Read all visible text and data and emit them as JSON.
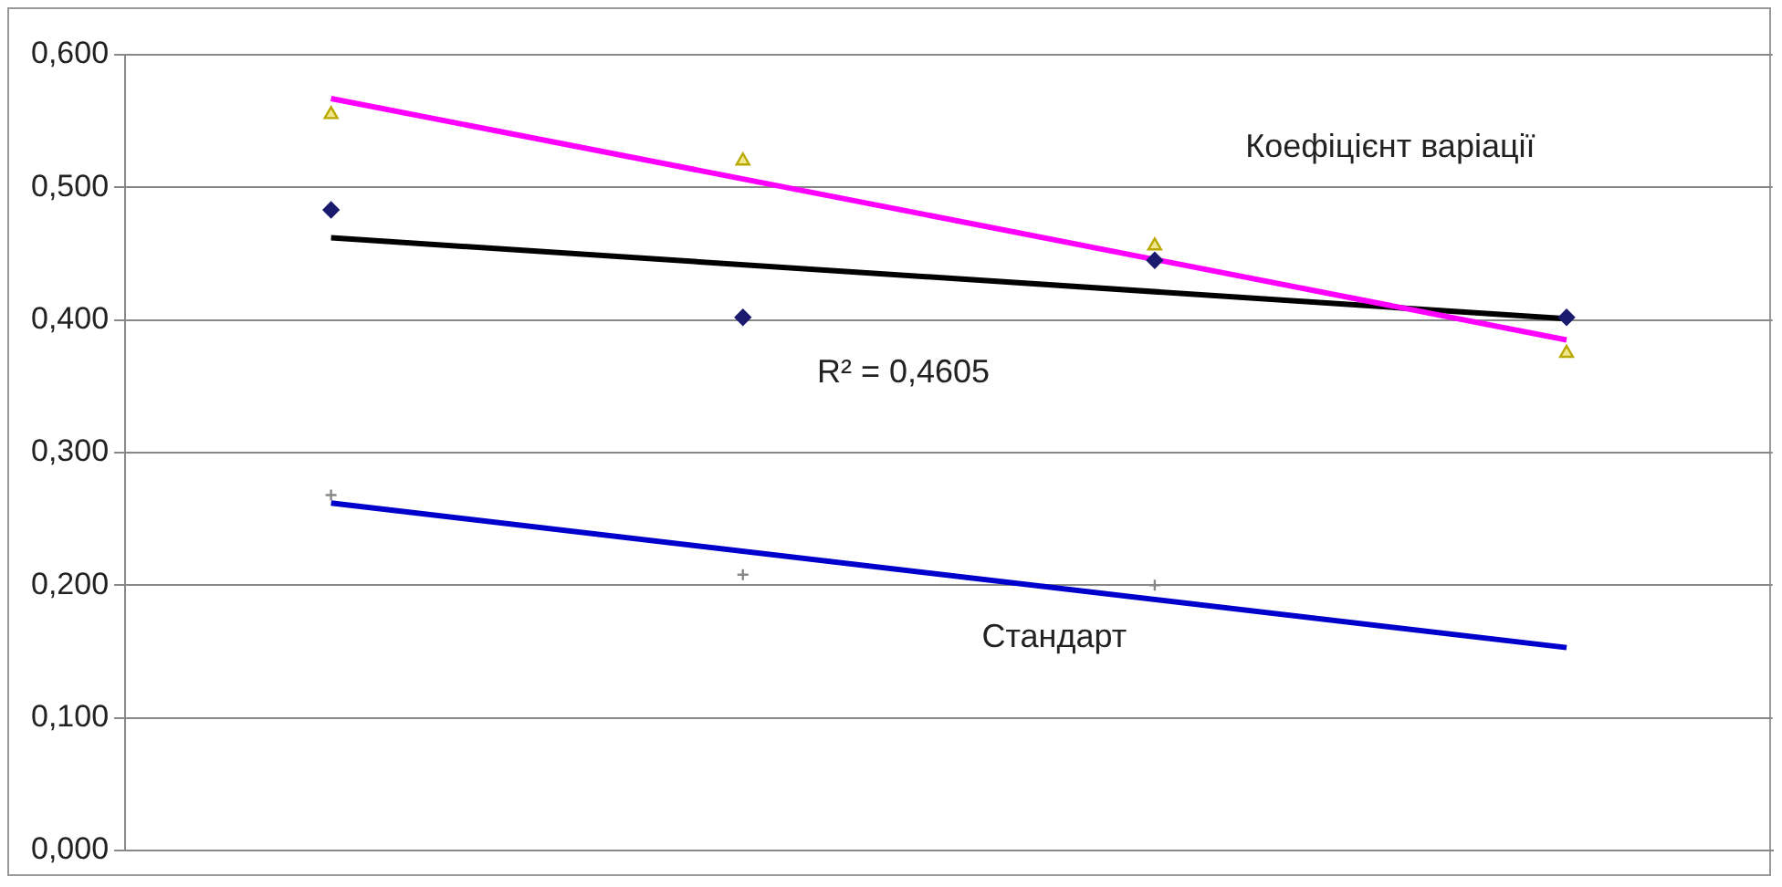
{
  "chart_data": {
    "type": "scatter",
    "categories": [
      null,
      null,
      null,
      null
    ],
    "ylim": [
      0,
      0.6
    ],
    "yticks": [
      {
        "value": 0,
        "label": "0,000"
      },
      {
        "value": 0.1,
        "label": "0,100"
      },
      {
        "value": 0.2,
        "label": "0,200"
      },
      {
        "value": 0.3,
        "label": "0,300"
      },
      {
        "value": 0.4,
        "label": "0,400"
      },
      {
        "value": 0.5,
        "label": "0,500"
      },
      {
        "value": 0.6,
        "label": "0,600"
      }
    ],
    "tick_labels": "y",
    "grid": "y",
    "legend": false,
    "series": [
      {
        "marker": "triangle",
        "color": "#b8a800",
        "values": [
          0.555,
          0.52,
          0.456,
          0.375
        ]
      },
      {
        "marker": "diamond",
        "color": "#1a1a6e",
        "values": [
          0.483,
          0.402,
          0.445,
          0.402
        ]
      },
      {
        "marker": "cross",
        "color": "#888888",
        "values": [
          0.268,
          0.208,
          0.2,
          null
        ]
      },
      {
        "type": "line",
        "marker": "none",
        "color": "#ff00ff",
        "values": [
          0.567,
          null,
          null,
          0.385
        ]
      },
      {
        "type": "line",
        "marker": "none",
        "color": "#000000",
        "values": [
          0.462,
          null,
          null,
          0.401
        ]
      },
      {
        "type": "line",
        "marker": "none",
        "color": "#0000cc",
        "values": [
          0.262,
          null,
          null,
          0.153
        ]
      }
    ],
    "annotations": [
      "Коефіцієнт варіації",
      "R² = 0,4605",
      "Стандарт"
    ]
  }
}
